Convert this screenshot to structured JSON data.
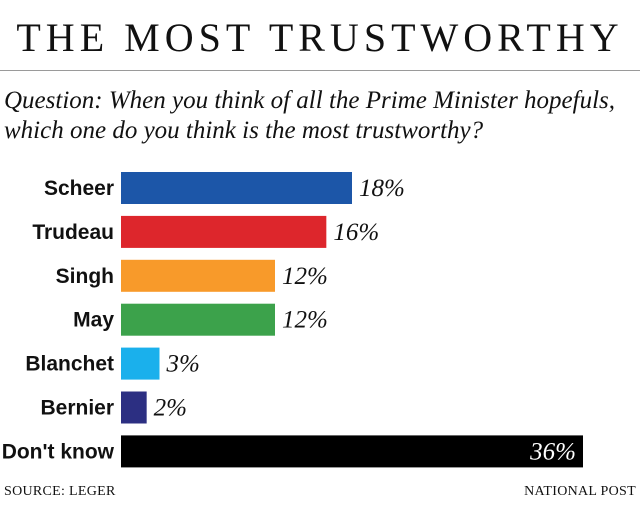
{
  "header": {
    "title": "THE MOST TRUSTWORTHY",
    "question": "Question: When you think of all the Prime Minister hopefuls, which one do you think is the most trustworthy?"
  },
  "chart_data": {
    "type": "bar",
    "orientation": "horizontal",
    "title": "THE MOST TRUSTWORTHY",
    "xlabel": "",
    "ylabel": "",
    "xlim": [
      0,
      36
    ],
    "grid": false,
    "categories": [
      "Scheer",
      "Trudeau",
      "Singh",
      "May",
      "Blanchet",
      "Bernier",
      "Don't know"
    ],
    "values": [
      18,
      16,
      12,
      12,
      3,
      2,
      36
    ],
    "labels": [
      "18%",
      "16%",
      "12%",
      "12%",
      "3%",
      "2%",
      "36%"
    ],
    "colors": [
      "#1c56a8",
      "#dd262c",
      "#f89a2a",
      "#3ca24b",
      "#1ab0ec",
      "#2c2f82",
      "#000000"
    ],
    "label_colors": [
      "#111111",
      "#111111",
      "#111111",
      "#111111",
      "#111111",
      "#111111",
      "#ffffff"
    ],
    "label_inside": [
      false,
      false,
      false,
      false,
      false,
      false,
      true
    ]
  },
  "footer": {
    "source": "SOURCE: LEGER",
    "credit": "NATIONAL POST"
  }
}
